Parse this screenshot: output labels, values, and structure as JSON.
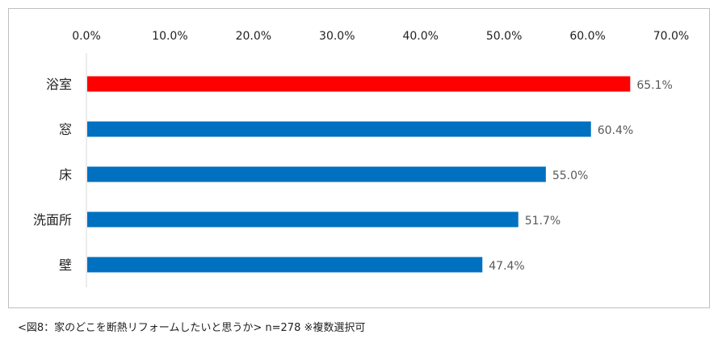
{
  "chart_data": {
    "type": "bar",
    "orientation": "horizontal",
    "categories": [
      "浴室",
      "窓",
      "床",
      "洗面所",
      "壁"
    ],
    "values": [
      65.1,
      60.4,
      55.0,
      51.7,
      47.4
    ],
    "value_labels": [
      "65.1%",
      "60.4%",
      "55.0%",
      "51.7%",
      "47.4%"
    ],
    "highlight_index": 0,
    "colors": {
      "highlight": "#ff0000",
      "default": "#0070c0",
      "axis": "#d9d9d9",
      "text": "#222222",
      "label": "#595959"
    },
    "xlim": [
      0,
      70
    ],
    "x_ticks": [
      0,
      10,
      20,
      30,
      40,
      50,
      60,
      70
    ],
    "x_tick_labels": [
      "0.0%",
      "10.0%",
      "20.0%",
      "30.0%",
      "40.0%",
      "50.0%",
      "60.0%",
      "70.0%"
    ],
    "x_axis_position": "top",
    "grid": false,
    "title": "",
    "xlabel": "",
    "ylabel": ""
  },
  "caption": "<図8：家のどこを断熱リフォームしたいと思うか>  n=278  ※複数選択可"
}
